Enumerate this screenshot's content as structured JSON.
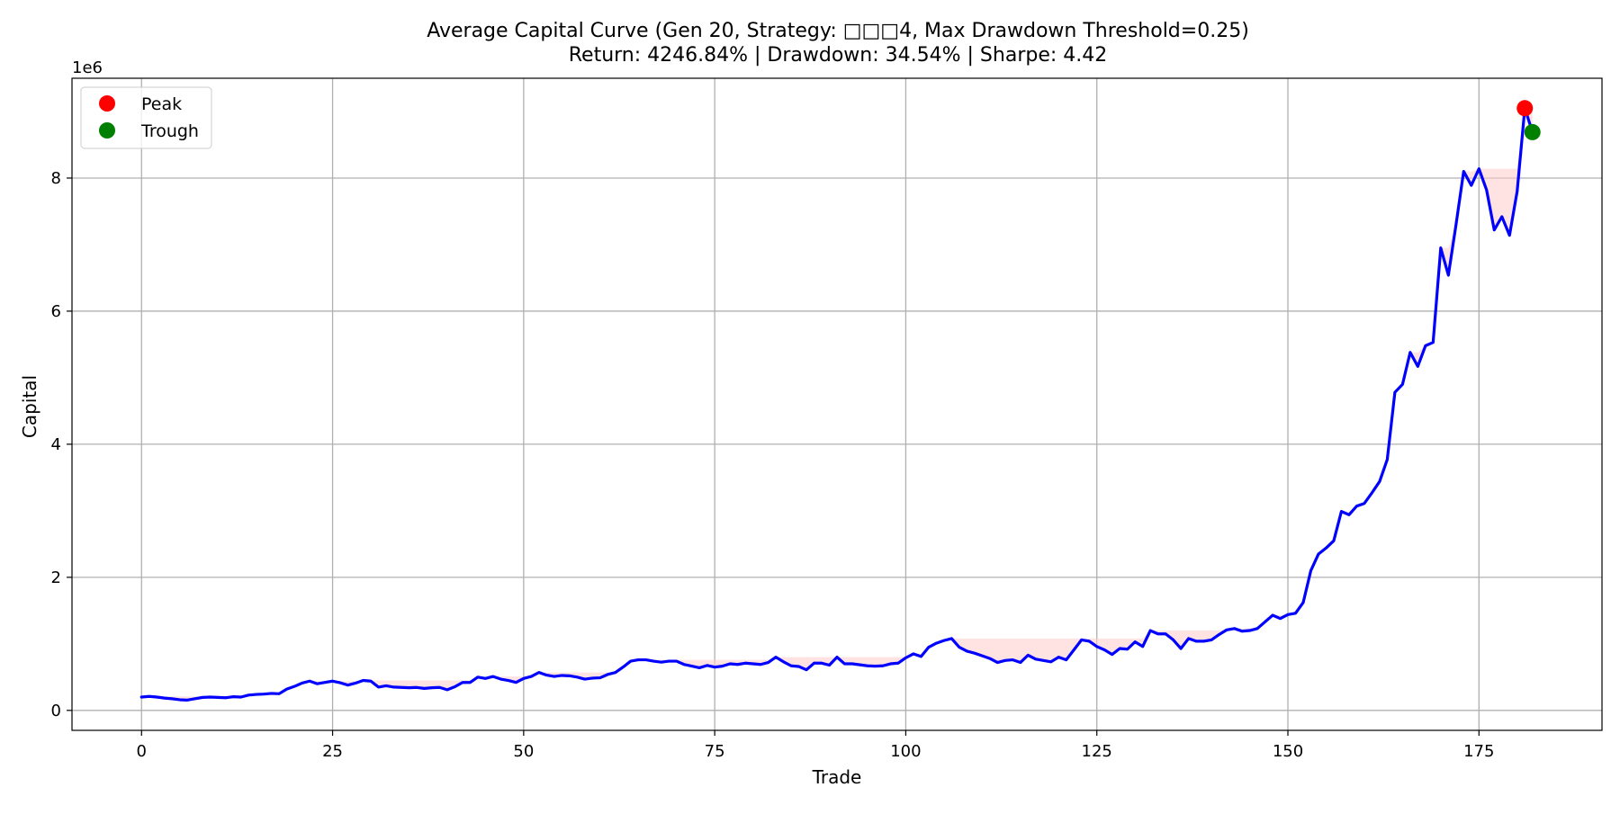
{
  "chart_data": {
    "type": "line",
    "title": "Average Capital Curve (Gen 20, Strategy: □□□4, Max Drawdown Threshold=0.25)",
    "subtitle": "Return: 4246.84% | Drawdown: 34.54% | Sharpe: 4.42",
    "xlabel": "Trade",
    "ylabel": "Capital",
    "y_offset_text": "1e6",
    "y_scale": 1000000,
    "xlim": [
      -9.1,
      191.1
    ],
    "ylim": [
      -300000,
      9500000
    ],
    "x_ticks": [
      0,
      25,
      50,
      75,
      100,
      125,
      150,
      175
    ],
    "y_ticks": [
      0,
      2000000,
      4000000,
      6000000,
      8000000
    ],
    "y_tick_labels": [
      "0",
      "2",
      "4",
      "6",
      "8"
    ],
    "grid": true,
    "legend_position": "upper left",
    "legend": [
      {
        "label": "Peak",
        "color": "#ff0000"
      },
      {
        "label": "Trough",
        "color": "#008000"
      }
    ],
    "series": [
      {
        "color": "#0000ff",
        "fill_color": "#ffcccc",
        "values": [
          200000,
          210000,
          200000,
          185000,
          175000,
          160000,
          155000,
          175000,
          195000,
          200000,
          195000,
          190000,
          205000,
          200000,
          230000,
          240000,
          245000,
          255000,
          250000,
          320000,
          360000,
          410000,
          440000,
          400000,
          420000,
          440000,
          415000,
          380000,
          410000,
          450000,
          440000,
          350000,
          370000,
          350000,
          345000,
          340000,
          345000,
          330000,
          340000,
          345000,
          310000,
          355000,
          420000,
          420000,
          500000,
          480000,
          510000,
          470000,
          450000,
          420000,
          480000,
          510000,
          570000,
          530000,
          510000,
          525000,
          520000,
          500000,
          470000,
          485000,
          490000,
          540000,
          570000,
          650000,
          740000,
          760000,
          760000,
          740000,
          725000,
          740000,
          740000,
          690000,
          665000,
          640000,
          675000,
          650000,
          665000,
          700000,
          690000,
          710000,
          700000,
          690000,
          720000,
          800000,
          730000,
          670000,
          660000,
          610000,
          710000,
          710000,
          680000,
          800000,
          700000,
          700000,
          685000,
          670000,
          665000,
          670000,
          700000,
          710000,
          790000,
          850000,
          810000,
          950000,
          1010000,
          1050000,
          1080000,
          950000,
          890000,
          860000,
          820000,
          780000,
          720000,
          750000,
          760000,
          720000,
          830000,
          770000,
          750000,
          730000,
          800000,
          760000,
          910000,
          1060000,
          1040000,
          960000,
          910000,
          840000,
          930000,
          920000,
          1030000,
          960000,
          1200000,
          1150000,
          1150000,
          1060000,
          930000,
          1080000,
          1040000,
          1040000,
          1060000,
          1140000,
          1210000,
          1230000,
          1190000,
          1200000,
          1230000,
          1330000,
          1430000,
          1380000,
          1440000,
          1460000,
          1620000,
          2100000,
          2350000,
          2440000,
          2550000,
          2990000,
          2940000,
          3070000,
          3110000,
          3270000,
          3440000,
          3770000,
          4780000,
          4900000,
          5380000,
          5170000,
          5480000,
          5530000,
          6950000,
          6540000,
          7300000,
          8100000,
          7890000,
          8140000,
          7820000,
          7220000,
          7420000,
          7140000,
          7800000,
          9050000,
          8690000
        ]
      }
    ],
    "peak": {
      "x": 181,
      "y": 9050000
    },
    "trough": {
      "x": 182,
      "y": 8690000
    }
  }
}
